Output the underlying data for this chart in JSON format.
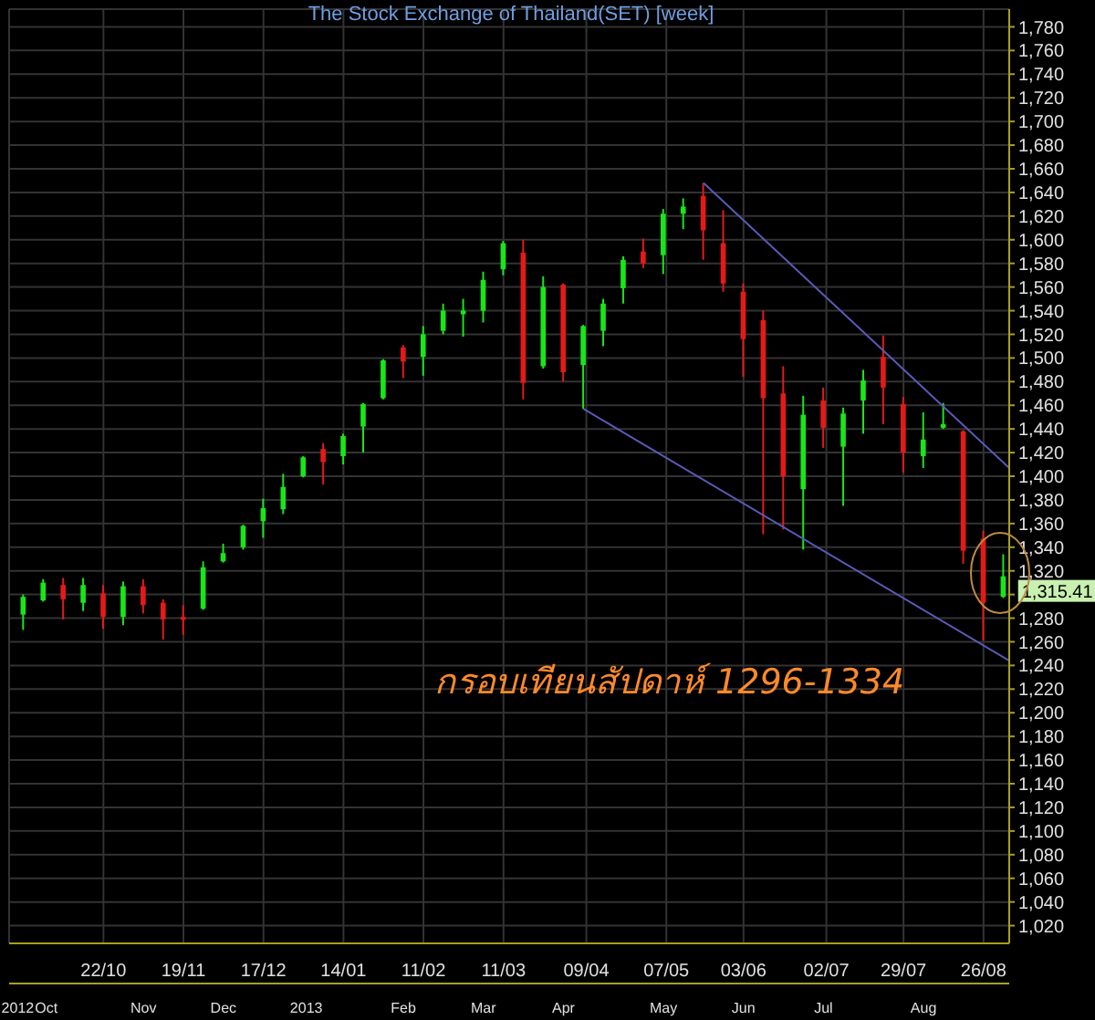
{
  "chart_data": {
    "type": "candlestick",
    "title": "The Stock Exchange of Thailand(SET) [week]",
    "x": [
      "2012-09-24",
      "2012-10-01",
      "2012-10-08",
      "2012-10-15",
      "2012-10-22",
      "2012-10-29",
      "2012-11-05",
      "2012-11-12",
      "2012-11-19",
      "2012-11-26",
      "2012-12-03",
      "2012-12-10",
      "2012-12-17",
      "2012-12-24",
      "2012-12-31",
      "2013-01-07",
      "2013-01-14",
      "2013-01-21",
      "2013-01-28",
      "2013-02-04",
      "2013-02-11",
      "2013-02-18",
      "2013-02-25",
      "2013-03-04",
      "2013-03-11",
      "2013-03-18",
      "2013-03-25",
      "2013-04-01",
      "2013-04-08",
      "2013-04-15",
      "2013-04-22",
      "2013-04-29",
      "2013-05-06",
      "2013-05-13",
      "2013-05-20",
      "2013-05-27",
      "2013-06-03",
      "2013-06-10",
      "2013-06-17",
      "2013-06-24",
      "2013-07-01",
      "2013-07-08",
      "2013-07-15",
      "2013-07-22",
      "2013-07-29",
      "2013-08-05",
      "2013-08-12",
      "2013-08-19",
      "2013-08-26",
      "2013-09-02"
    ],
    "ohlc": [
      [
        1283,
        1300,
        1270,
        1298
      ],
      [
        1295,
        1313,
        1294,
        1310
      ],
      [
        1308,
        1314,
        1279,
        1296
      ],
      [
        1293,
        1314,
        1286,
        1308
      ],
      [
        1301,
        1308,
        1271,
        1281
      ],
      [
        1281,
        1311,
        1274,
        1307
      ],
      [
        1307,
        1313,
        1284,
        1291
      ],
      [
        1293,
        1296,
        1262,
        1279
      ],
      [
        1281,
        1291,
        1266,
        1279
      ],
      [
        1288,
        1328,
        1287,
        1323
      ],
      [
        1328,
        1343,
        1327,
        1335
      ],
      [
        1340,
        1359,
        1338,
        1358
      ],
      [
        1362,
        1381,
        1348,
        1373
      ],
      [
        1372,
        1402,
        1368,
        1391
      ],
      [
        1400,
        1417,
        1399,
        1416
      ],
      [
        1423,
        1428,
        1393,
        1412
      ],
      [
        1417,
        1436,
        1410,
        1434
      ],
      [
        1442,
        1462,
        1420,
        1461
      ],
      [
        1466,
        1499,
        1465,
        1498
      ],
      [
        1509,
        1511,
        1483,
        1497
      ],
      [
        1501,
        1527,
        1485,
        1520
      ],
      [
        1523,
        1546,
        1520,
        1540
      ],
      [
        1537,
        1550,
        1518,
        1540
      ],
      [
        1540,
        1573,
        1530,
        1566
      ],
      [
        1575,
        1599,
        1570,
        1597
      ],
      [
        1589,
        1600,
        1465,
        1479
      ],
      [
        1493,
        1569,
        1491,
        1560
      ],
      [
        1562,
        1563,
        1480,
        1488
      ],
      [
        1494,
        1528,
        1457,
        1527
      ],
      [
        1523,
        1550,
        1510,
        1546
      ],
      [
        1559,
        1586,
        1546,
        1583
      ],
      [
        1590,
        1601,
        1576,
        1580
      ],
      [
        1587,
        1626,
        1571,
        1622
      ],
      [
        1622,
        1635,
        1609,
        1628
      ],
      [
        1637,
        1648,
        1583,
        1608
      ],
      [
        1597,
        1625,
        1556,
        1563
      ],
      [
        1556,
        1563,
        1484,
        1516
      ],
      [
        1532,
        1540,
        1351,
        1466
      ],
      [
        1470,
        1493,
        1355,
        1400
      ],
      [
        1389,
        1468,
        1338,
        1452
      ],
      [
        1464,
        1475,
        1424,
        1441
      ],
      [
        1425,
        1458,
        1375,
        1453
      ],
      [
        1464,
        1490,
        1436,
        1481
      ],
      [
        1501,
        1519,
        1444,
        1475
      ],
      [
        1461,
        1467,
        1403,
        1420
      ],
      [
        1417,
        1454,
        1407,
        1431
      ],
      [
        1441,
        1462,
        1440,
        1444
      ],
      [
        1438,
        1439,
        1326,
        1337
      ],
      [
        1347,
        1354,
        1261,
        1293
      ],
      [
        1298,
        1334,
        1297,
        1315.41
      ]
    ],
    "colors": [
      "#19e619",
      "#19e619",
      "#e61919",
      "#19e619",
      "#e61919",
      "#19e619",
      "#e61919",
      "#e61919",
      "#e61919",
      "#19e619",
      "#19e619",
      "#19e619",
      "#19e619",
      "#19e619",
      "#19e619",
      "#e61919",
      "#19e619",
      "#19e619",
      "#19e619",
      "#e61919",
      "#19e619",
      "#19e619",
      "#19e619",
      "#19e619",
      "#19e619",
      "#e61919",
      "#19e619",
      "#e61919",
      "#19e619",
      "#19e619",
      "#19e619",
      "#e61919",
      "#19e619",
      "#19e619",
      "#e61919",
      "#e61919",
      "#e61919",
      "#e61919",
      "#e61919",
      "#19e619",
      "#e61919",
      "#19e619",
      "#19e619",
      "#e61919",
      "#e61919",
      "#19e619",
      "#19e619",
      "#e61919",
      "#e61919",
      "#19e619"
    ],
    "series": [
      {
        "type": "line",
        "x": [
          "2013-05-20",
          "2013-09-04"
        ],
        "values": [
          1648,
          1407
        ],
        "color": "#5a5ab8"
      },
      {
        "type": "line",
        "x": [
          "2013-04-08",
          "2013-09-04"
        ],
        "values": [
          1457,
          1244
        ],
        "color": "#5a5ab8"
      }
    ],
    "xlim": [
      "2012-09-19",
      "2013-09-04"
    ],
    "xticks": [
      {
        "value": "2012-10-22",
        "label": "22/10"
      },
      {
        "value": "2012-11-19",
        "label": "19/11"
      },
      {
        "value": "2012-12-17",
        "label": "17/12"
      },
      {
        "value": "2013-01-14",
        "label": "14/01"
      },
      {
        "value": "2013-02-11",
        "label": "11/02"
      },
      {
        "value": "2013-03-11",
        "label": "11/03"
      },
      {
        "value": "2013-04-09",
        "label": "09/04"
      },
      {
        "value": "2013-05-07",
        "label": "07/05"
      },
      {
        "value": "2013-06-03",
        "label": "03/06"
      },
      {
        "value": "2013-07-02",
        "label": "02/07"
      },
      {
        "value": "2013-07-29",
        "label": "29/07"
      },
      {
        "value": "2013-08-26",
        "label": "26/08"
      }
    ],
    "ylim": [
      1005,
      1795
    ],
    "yticks": [
      {
        "value": 1020,
        "label": "1,020"
      },
      {
        "value": 1040,
        "label": "1,040"
      },
      {
        "value": 1060,
        "label": "1,060"
      },
      {
        "value": 1080,
        "label": "1,080"
      },
      {
        "value": 1100,
        "label": "1,100"
      },
      {
        "value": 1120,
        "label": "1,120"
      },
      {
        "value": 1140,
        "label": "1,140"
      },
      {
        "value": 1160,
        "label": "1,160"
      },
      {
        "value": 1180,
        "label": "1,180"
      },
      {
        "value": 1200,
        "label": "1,200"
      },
      {
        "value": 1220,
        "label": "1,220"
      },
      {
        "value": 1240,
        "label": "1,240"
      },
      {
        "value": 1260,
        "label": "1,260"
      },
      {
        "value": 1280,
        "label": "1,280"
      },
      {
        "value": 1300,
        "label": null
      },
      {
        "value": 1320,
        "label": "1,320"
      },
      {
        "value": 1340,
        "label": "1,340"
      },
      {
        "value": 1360,
        "label": "1,360"
      },
      {
        "value": 1380,
        "label": "1,380"
      },
      {
        "value": 1400,
        "label": "1,400"
      },
      {
        "value": 1420,
        "label": "1,420"
      },
      {
        "value": 1440,
        "label": "1,440"
      },
      {
        "value": 1460,
        "label": "1,460"
      },
      {
        "value": 1480,
        "label": "1,480"
      },
      {
        "value": 1500,
        "label": "1,500"
      },
      {
        "value": 1520,
        "label": "1,520"
      },
      {
        "value": 1540,
        "label": "1,540"
      },
      {
        "value": 1560,
        "label": "1,560"
      },
      {
        "value": 1580,
        "label": "1,580"
      },
      {
        "value": 1600,
        "label": "1,600"
      },
      {
        "value": 1620,
        "label": "1,620"
      },
      {
        "value": 1640,
        "label": "1,640"
      },
      {
        "value": 1660,
        "label": "1,660"
      },
      {
        "value": 1680,
        "label": "1,680"
      },
      {
        "value": 1700,
        "label": "1,700"
      },
      {
        "value": 1720,
        "label": "1,720"
      },
      {
        "value": 1740,
        "label": "1,740"
      },
      {
        "value": 1760,
        "label": "1,760"
      },
      {
        "value": 1780,
        "label": "1,780"
      }
    ],
    "grid": true,
    "annotations": [
      "กรอบเทียนสัปดาห์ 1296-1334",
      "1,315.41"
    ],
    "x2lim": [
      "2012-09-19",
      "2013-09-04"
    ],
    "x2ticks": [
      {
        "value": "2012-09-22",
        "label": "2012"
      },
      {
        "value": "2012-10-02",
        "label": "Oct"
      },
      {
        "value": "2012-11-05",
        "label": "Nov"
      },
      {
        "value": "2012-12-03",
        "label": "Dec"
      },
      {
        "value": "2013-01-01",
        "label": "2013"
      },
      {
        "value": "2013-02-04",
        "label": "Feb"
      },
      {
        "value": "2013-03-04",
        "label": "Mar"
      },
      {
        "value": "2013-04-01",
        "label": "Apr"
      },
      {
        "value": "2013-05-06",
        "label": "May"
      },
      {
        "value": "2013-06-03",
        "label": "Jun"
      },
      {
        "value": "2013-07-01",
        "label": "Jul"
      },
      {
        "value": "2013-08-05",
        "label": "Aug"
      }
    ]
  }
}
